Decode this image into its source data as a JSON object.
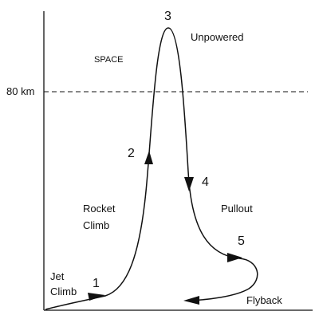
{
  "altitude_label": "80 km",
  "region_label": "SPACE",
  "points": [
    "1",
    "2",
    "3",
    "4",
    "5"
  ],
  "phases": {
    "jet_climb": [
      "Jet",
      "Climb"
    ],
    "rocket_climb": [
      "Rocket",
      "Climb"
    ],
    "unpowered": "Unpowered",
    "pullout": "Pullout",
    "flyback": "Flyback"
  }
}
